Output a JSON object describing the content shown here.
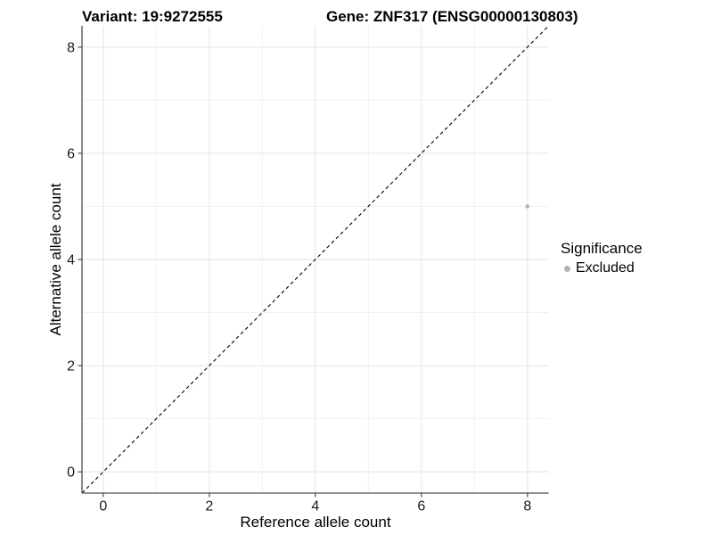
{
  "chart_data": {
    "type": "scatter",
    "title_left": "Variant: 19:9272555",
    "title_right": "Gene: ZNF317 (ENSG00000130803)",
    "xlabel": "Reference allele count",
    "ylabel": "Alternative allele count",
    "xlim": [
      -0.4,
      8.4
    ],
    "ylim": [
      -0.4,
      8.4
    ],
    "x_ticks": [
      0,
      2,
      4,
      6,
      8
    ],
    "y_ticks": [
      0,
      2,
      4,
      6,
      8
    ],
    "x_minor_ticks": [
      1,
      3,
      5,
      7
    ],
    "y_minor_ticks": [
      1,
      3,
      5,
      7
    ],
    "grid": true,
    "series": [
      {
        "name": "Excluded",
        "color": "#b4b4b4",
        "points": [
          {
            "x": 8,
            "y": 5
          }
        ]
      }
    ],
    "reference_line": {
      "slope": 1,
      "intercept": 0,
      "style": "dashed",
      "color": "#000000"
    },
    "legend": {
      "position": "right",
      "title": "Significance",
      "entries": [
        {
          "label": "Excluded",
          "color": "#b4b4b4"
        }
      ]
    },
    "colors": {
      "background": "#ffffff",
      "grid_major": "#e3e3e3",
      "grid_minor": "#f1f1f1",
      "axis_line": "#4d4d4d",
      "tick_mark": "#4d4d4d",
      "tick_label": "#1a1a1a"
    }
  }
}
